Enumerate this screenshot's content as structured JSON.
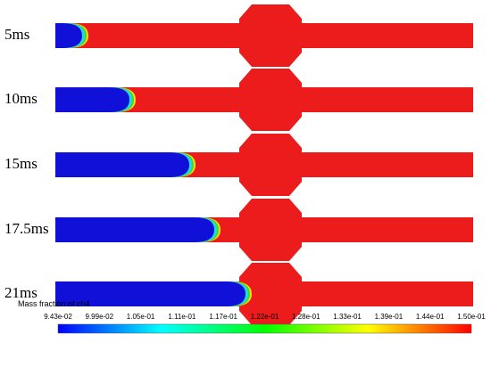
{
  "panels": [
    {
      "label": "5ms"
    },
    {
      "label": "10ms"
    },
    {
      "label": "15ms"
    },
    {
      "label": "17.5ms"
    },
    {
      "label": "21ms"
    }
  ],
  "colorbar": {
    "title": "Mass fraction of ch4",
    "ticks": [
      "9.43e-02",
      "9.99e-02",
      "1.05e-01",
      "1.11e-01",
      "1.17e-01",
      "1.22e-01",
      "1.28e-01",
      "1.33e-01",
      "1.39e-01",
      "1.44e-01",
      "1.50e-01"
    ]
  }
}
